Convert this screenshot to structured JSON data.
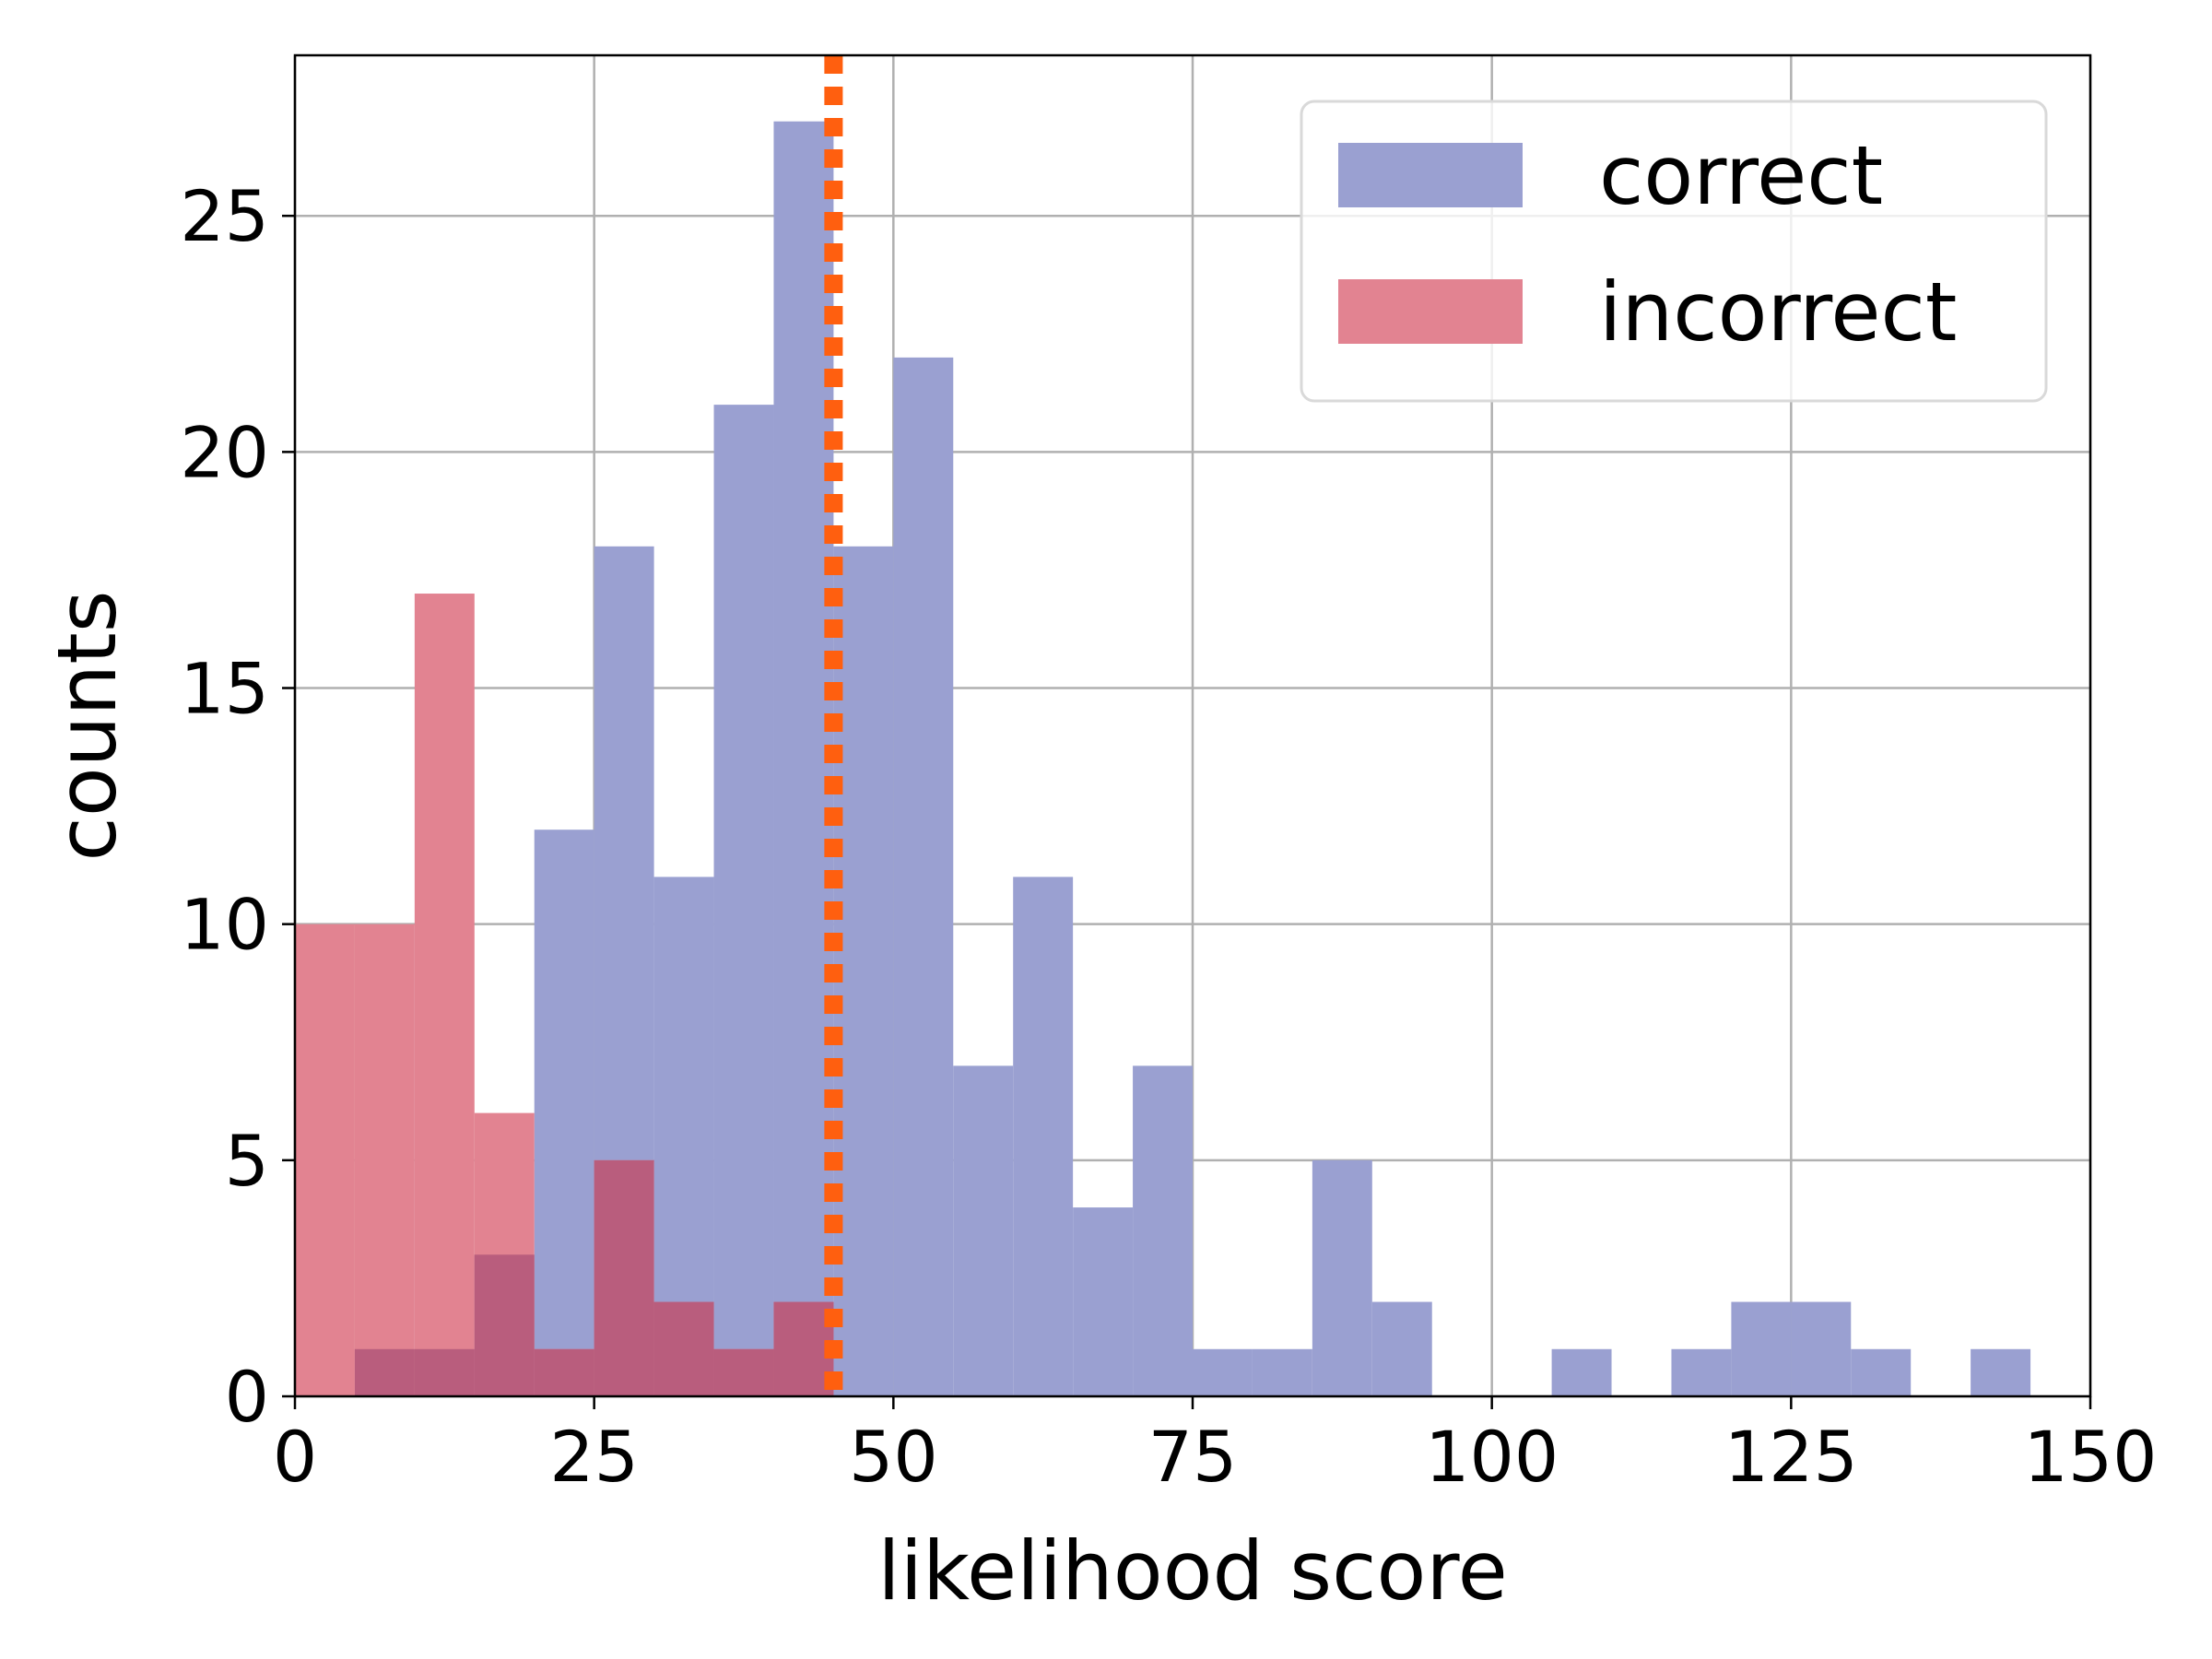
{
  "chart_data": {
    "type": "bar",
    "subtype": "histogram",
    "title": "",
    "xlabel": "likelihood score",
    "ylabel": "counts",
    "xlim": [
      0,
      150
    ],
    "ylim": [
      0,
      28.4
    ],
    "xticks": [
      0,
      25,
      50,
      75,
      100,
      125,
      150
    ],
    "yticks": [
      0,
      5,
      10,
      15,
      20,
      25
    ],
    "grid": true,
    "legend": {
      "position": "top-right"
    },
    "bin_width": 5,
    "bin_edges": [
      0,
      5,
      10,
      15,
      20,
      25,
      30,
      35,
      40,
      45,
      50,
      55,
      60,
      65,
      70,
      75,
      80,
      85,
      90,
      95,
      100,
      105,
      110,
      115,
      120,
      125,
      130,
      135,
      140,
      145,
      150
    ],
    "series": [
      {
        "name": "correct",
        "color": "#9aa0d1",
        "values": [
          0,
          1,
          1,
          3,
          12,
          18,
          11,
          21,
          27,
          18,
          22,
          7,
          11,
          4,
          7,
          1,
          1,
          5,
          2,
          0,
          0,
          1,
          0,
          1,
          2,
          2,
          1,
          0,
          1,
          0
        ]
      },
      {
        "name": "incorrect",
        "color": "#e28391",
        "values": [
          10,
          10,
          17,
          6,
          1,
          5,
          2,
          1,
          2,
          0,
          0,
          0,
          0,
          0,
          0,
          0,
          0,
          0,
          0,
          0,
          0,
          0,
          0,
          0,
          0,
          0,
          0,
          0,
          0,
          0
        ]
      }
    ],
    "overlap_color": "#b95d7d",
    "threshold": {
      "x": 45,
      "color": "#ff5f0f",
      "style": "dotted"
    }
  }
}
